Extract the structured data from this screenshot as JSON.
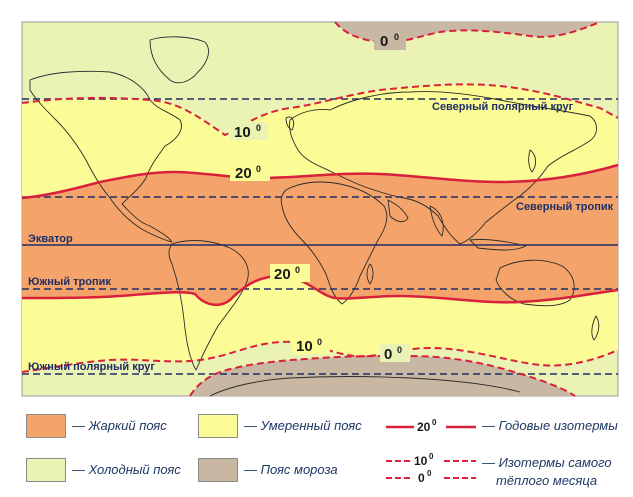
{
  "map": {
    "labels": {
      "arctic_circle": "Северный полярный круг",
      "tropic_cancer": "Северный тропик",
      "equator": "Экватор",
      "tropic_capricorn": "Южный тропик",
      "antarctic_circle": "Южный полярный круг"
    },
    "isotherms": {
      "north_0": "0",
      "north_10": "10",
      "north_20": "20",
      "south_20": "20",
      "south_10": "10",
      "south_0": "0",
      "degree": "0"
    },
    "colors": {
      "hot": "#f4a46a",
      "temperate": "#fcfc96",
      "cold": "#eaf2b4",
      "frost": "#c8b7a3",
      "isotherm": "#d9203c",
      "latitude_line": "#1f2e66",
      "coast": "#2b2b2b",
      "legend_text": "#1f3864"
    }
  },
  "legend": {
    "hot": "— Жаркий пояс",
    "temperate": "— Умеренный пояс",
    "cold": "— Холодный пояс",
    "frost": "— Пояс мороза",
    "annual_isotherms_value": "20",
    "annual_isotherms_sup": "0",
    "annual_isotherms": "— Годовые изотермы",
    "warm_month_value_10": "10",
    "warm_month_value_0": "0",
    "warm_month_sup": "0",
    "warm_month_line1": "— Изотермы самого",
    "warm_month_line2": "тёплого месяца"
  }
}
